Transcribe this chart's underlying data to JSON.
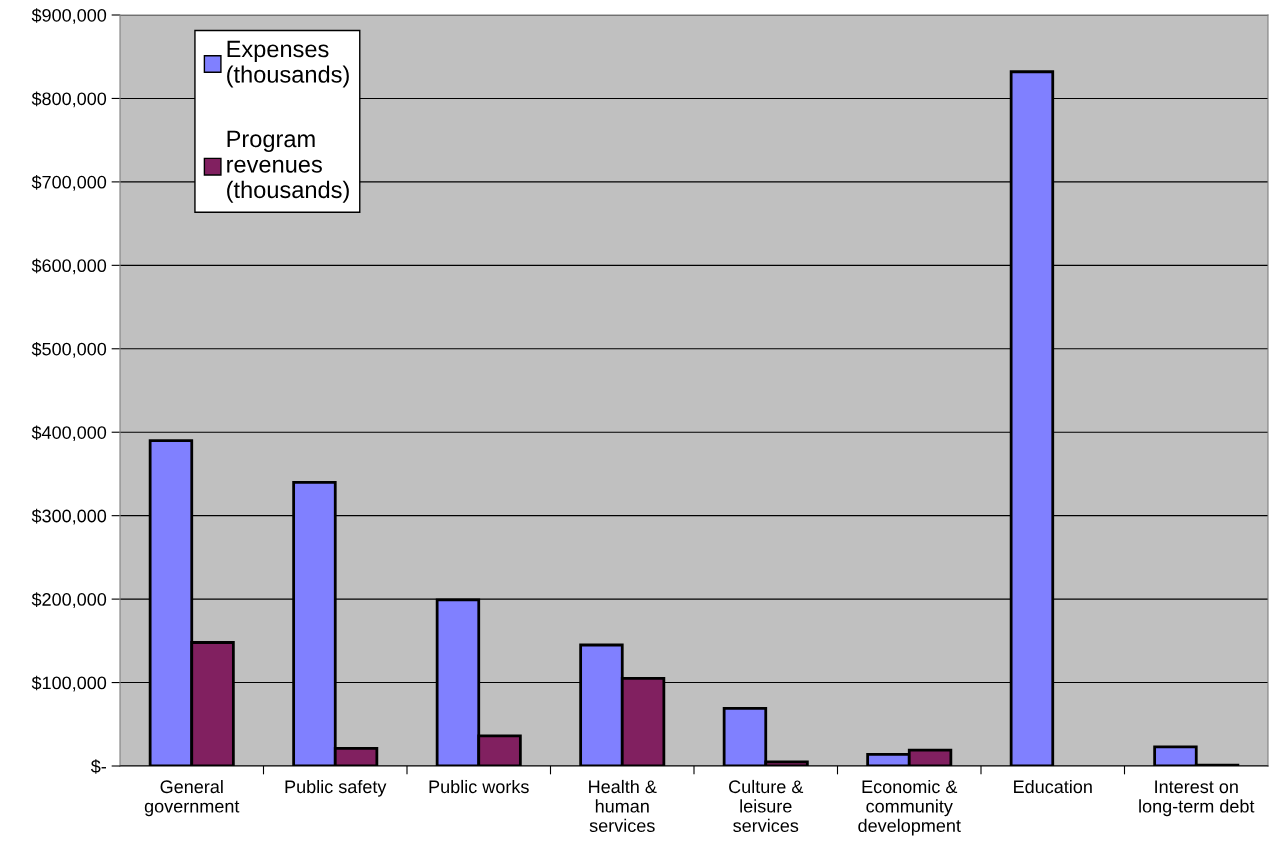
{
  "chart_data": {
    "type": "bar",
    "categories": [
      "General\ngovernment",
      "Public safety",
      "Public works",
      "Health &\nhuman\nservices",
      "Culture &\nleisure\nservices",
      "Economic &\ncommunity\ndevelopment",
      "Education",
      "Interest on\nlong-term debt"
    ],
    "series": [
      {
        "name": "Expenses\n(thousands)",
        "color": "#8080ff",
        "values": [
          390000,
          340000,
          199000,
          145000,
          69000,
          14000,
          832000,
          23000
        ]
      },
      {
        "name": "Program\nrevenues\n(thousands)",
        "color": "#812060",
        "values": [
          148000,
          21000,
          36000,
          105000,
          5000,
          19000,
          null,
          1000
        ]
      }
    ],
    "ylim": [
      0,
      900000
    ],
    "yticks": [
      {
        "value": 0,
        "label": "$-"
      },
      {
        "value": 100000,
        "label": "$100,000"
      },
      {
        "value": 200000,
        "label": "$200,000"
      },
      {
        "value": 300000,
        "label": "$300,000"
      },
      {
        "value": 400000,
        "label": "$400,000"
      },
      {
        "value": 500000,
        "label": "$500,000"
      },
      {
        "value": 600000,
        "label": "$600,000"
      },
      {
        "value": 700000,
        "label": "$700,000"
      },
      {
        "value": 800000,
        "label": "$800,000"
      },
      {
        "value": 900000,
        "label": "$900,000"
      }
    ],
    "grid": "y",
    "legend": "top left"
  }
}
